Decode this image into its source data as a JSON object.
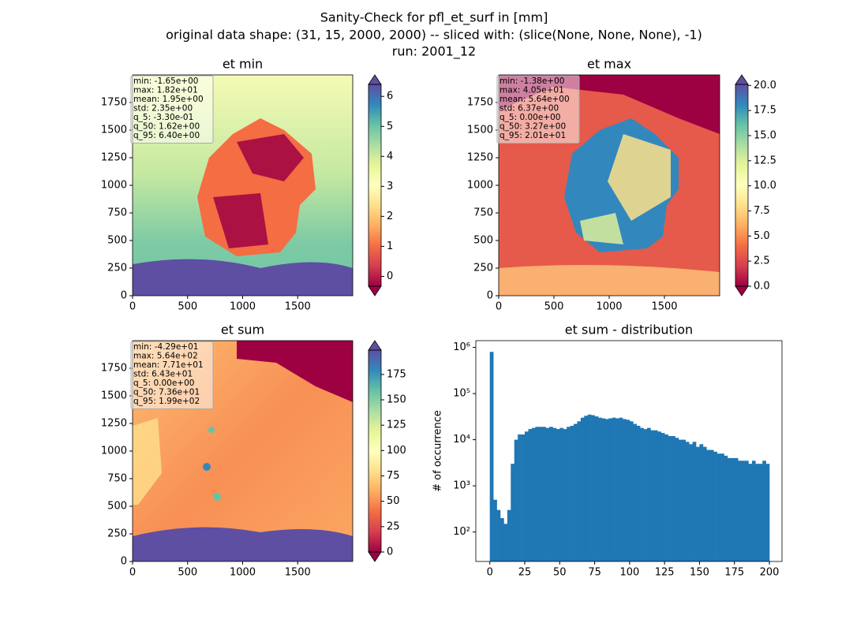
{
  "figure_title": [
    "Sanity-Check for pfl_et_surf in [mm]",
    "original data shape: (31, 15, 2000, 2000) -- sliced with: (slice(None, None, None), -1)",
    "run: 2001_12"
  ],
  "chart_data": [
    {
      "type": "heatmap",
      "title": "et min",
      "xlim": [
        0,
        2000
      ],
      "ylim": [
        0,
        2000
      ],
      "xticks": [
        0,
        500,
        1000,
        1500
      ],
      "yticks": [
        0,
        250,
        500,
        750,
        1000,
        1250,
        1500,
        1750
      ],
      "colormap": "Spectral",
      "colorbar": {
        "clim": [
          -0.33,
          6.4
        ],
        "ticks": [
          0,
          1,
          2,
          3,
          4,
          5,
          6
        ]
      },
      "stats": [
        "min: -1.65e+00",
        "max: 1.82e+01",
        "mean: 1.95e+00",
        "std: 2.35e+00",
        "q_5: -3.30e-01",
        "q_50: 1.62e+00",
        "q_95: 6.40e+00"
      ]
    },
    {
      "type": "heatmap",
      "title": "et max",
      "xlim": [
        0,
        2000
      ],
      "ylim": [
        0,
        2000
      ],
      "xticks": [
        0,
        500,
        1000,
        1500
      ],
      "yticks": [
        0,
        250,
        500,
        750,
        1000,
        1250,
        1500,
        1750
      ],
      "colormap": "Spectral",
      "colorbar": {
        "clim": [
          0,
          20.1
        ],
        "ticks": [
          {
            "value": 0,
            "label": "0.0"
          },
          {
            "value": 2.5,
            "label": "2.5"
          },
          {
            "value": 5,
            "label": "5.0"
          },
          {
            "value": 7.5,
            "label": "7.5"
          },
          {
            "value": 10,
            "label": "10.0"
          },
          {
            "value": 12.5,
            "label": "12.5"
          },
          {
            "value": 15,
            "label": "15.0"
          },
          {
            "value": 17.5,
            "label": "17.5"
          },
          {
            "value": 20,
            "label": "20.0"
          }
        ]
      },
      "stats": [
        "min: -1.38e+00",
        "max: 4.05e+01",
        "mean: 5.64e+00",
        "std: 6.37e+00",
        "q_5: 0.00e+00",
        "q_50: 3.27e+00",
        "q_95: 2.01e+01"
      ]
    },
    {
      "type": "heatmap",
      "title": "et sum",
      "xlim": [
        0,
        2000
      ],
      "ylim": [
        0,
        2000
      ],
      "xticks": [
        0,
        500,
        1000,
        1500
      ],
      "yticks": [
        0,
        250,
        500,
        750,
        1000,
        1250,
        1500,
        1750
      ],
      "colormap": "Spectral",
      "colorbar": {
        "clim": [
          0,
          199
        ],
        "ticks": [
          0,
          25,
          50,
          75,
          100,
          125,
          150,
          175
        ]
      },
      "stats": [
        "min: -4.29e+01",
        "max: 5.64e+02",
        "mean: 7.71e+01",
        "std: 6.43e+01",
        "q_5: 0.00e+00",
        "q_50: 7.36e+01",
        "q_95: 1.99e+02"
      ]
    },
    {
      "type": "histogram",
      "title": "et sum - distribution",
      "ylabel": "# of occurrence",
      "color": "#1f77b4",
      "log_y": true,
      "xlim": [
        -10,
        209
      ],
      "ylim": [
        23,
        1400000
      ],
      "xticks": [
        0,
        25,
        50,
        75,
        100,
        125,
        150,
        175,
        200
      ],
      "yticks": [
        {
          "value": 100,
          "label": "10²"
        },
        {
          "value": 1000,
          "label": "10³"
        },
        {
          "value": 10000,
          "label": "10⁴"
        },
        {
          "value": 100000,
          "label": "10⁵"
        },
        {
          "value": 1000000,
          "label": "10⁶"
        }
      ],
      "bins": [
        0,
        2.5,
        5,
        7.5,
        10,
        12.5,
        15,
        17.5,
        20,
        22.5,
        25,
        27.5,
        30,
        32.5,
        35,
        37.5,
        40,
        42.5,
        45,
        47.5,
        50,
        52.5,
        55,
        57.5,
        60,
        62.5,
        65,
        67.5,
        70,
        72.5,
        75,
        77.5,
        80,
        82.5,
        85,
        87.5,
        90,
        92.5,
        95,
        97.5,
        100,
        102.5,
        105,
        107.5,
        110,
        112.5,
        115,
        117.5,
        120,
        122.5,
        125,
        127.5,
        130,
        132.5,
        135,
        137.5,
        140,
        142.5,
        145,
        147.5,
        150,
        152.5,
        155,
        157.5,
        160,
        162.5,
        165,
        167.5,
        170,
        172.5,
        175,
        177.5,
        180,
        182.5,
        185,
        187.5,
        190,
        192.5,
        195,
        197.5,
        200
      ],
      "counts": [
        800000,
        500,
        300,
        200,
        150,
        300,
        3000,
        10000,
        13000,
        13000,
        15000,
        17000,
        18000,
        19000,
        19000,
        19000,
        18000,
        19000,
        18000,
        17000,
        18000,
        17000,
        19000,
        20000,
        22000,
        25000,
        30000,
        33000,
        35000,
        34000,
        32000,
        30000,
        29000,
        28000,
        29000,
        30000,
        29000,
        30000,
        28000,
        27000,
        25000,
        22000,
        20000,
        18000,
        17000,
        18000,
        16000,
        16000,
        15000,
        14000,
        13000,
        12000,
        12000,
        11000,
        10000,
        10000,
        9000,
        8000,
        9000,
        7000,
        8000,
        7000,
        6000,
        6000,
        5500,
        5000,
        5000,
        4500,
        4000,
        4000,
        4000,
        3500,
        3500,
        3500,
        3000,
        3500,
        3000,
        3000,
        3500,
        3000
      ]
    }
  ]
}
